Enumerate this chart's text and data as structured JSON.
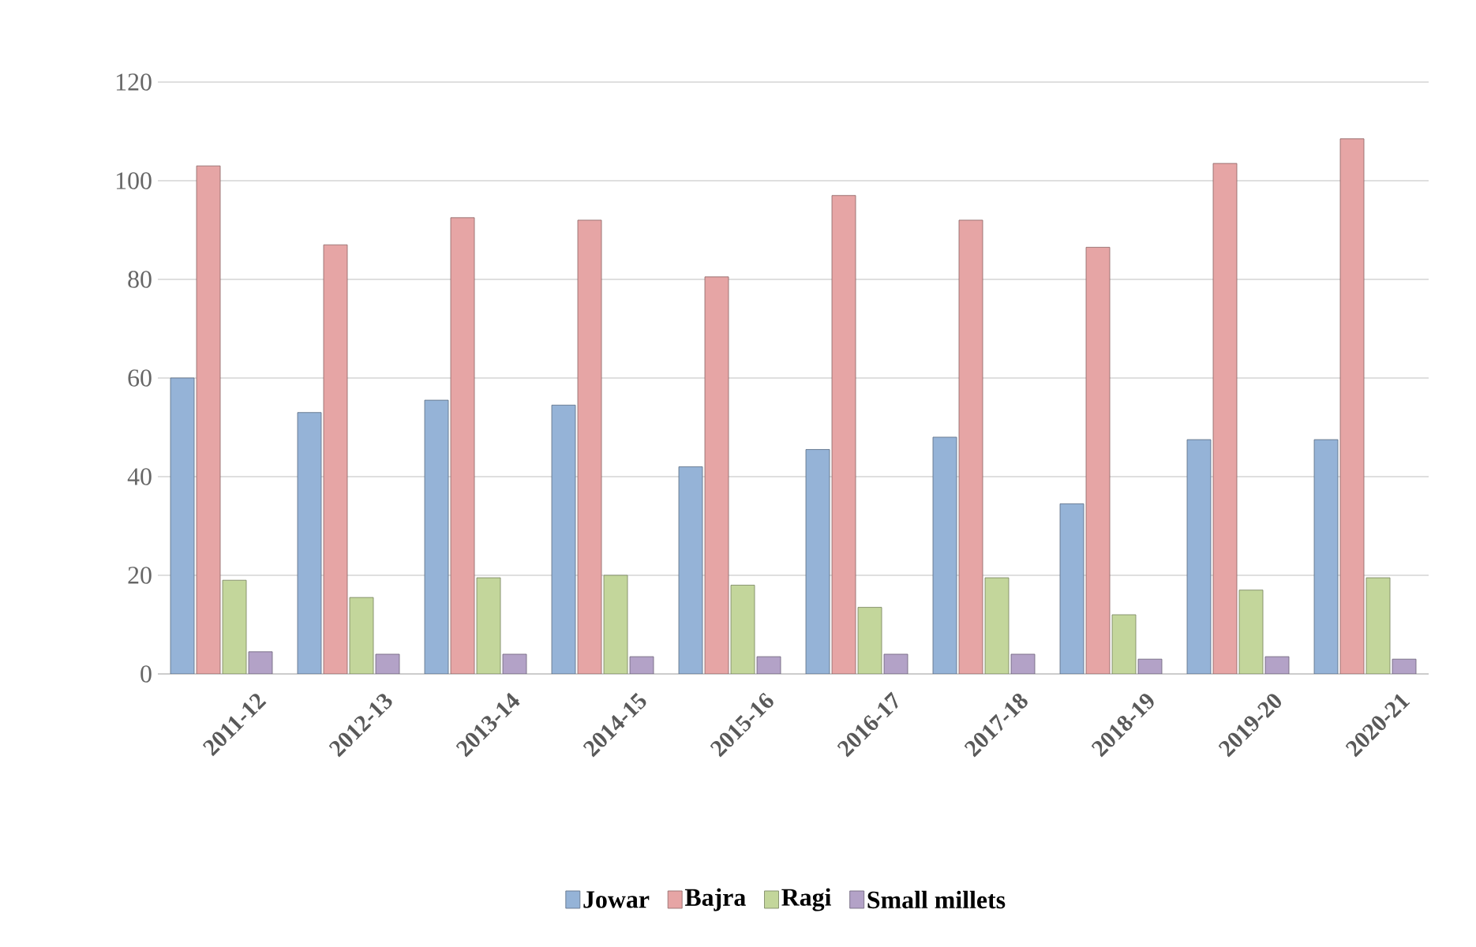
{
  "chart_data": {
    "type": "bar",
    "categories": [
      "2011-12",
      "2012-13",
      "2013-14",
      "2014-15",
      "2015-16",
      "2016-17",
      "2017-18",
      "2018-19",
      "2019-20",
      "2020-21"
    ],
    "series": [
      {
        "name": "Jowar",
        "color": "#95b3d7",
        "values": [
          60,
          53,
          55.5,
          54.5,
          42,
          45.5,
          48,
          34.5,
          47.5,
          47.5
        ]
      },
      {
        "name": "Bajra",
        "color": "#e6a5a5",
        "values": [
          103,
          87,
          92.5,
          92,
          80.5,
          97,
          92,
          86.5,
          103.5,
          108.5
        ]
      },
      {
        "name": "Ragi",
        "color": "#c3d69b",
        "values": [
          19,
          15.5,
          19.5,
          20,
          18,
          13.5,
          19.5,
          12,
          17,
          19.5
        ]
      },
      {
        "name": "Small millets",
        "color": "#b3a2c7",
        "values": [
          4.5,
          4,
          4,
          3.5,
          3.5,
          4,
          4,
          3,
          3.5,
          3
        ]
      }
    ],
    "ylim": [
      0,
      120
    ],
    "yticks": [
      0,
      20,
      40,
      60,
      80,
      100,
      120
    ],
    "grid": "y",
    "legend": "bottom"
  }
}
